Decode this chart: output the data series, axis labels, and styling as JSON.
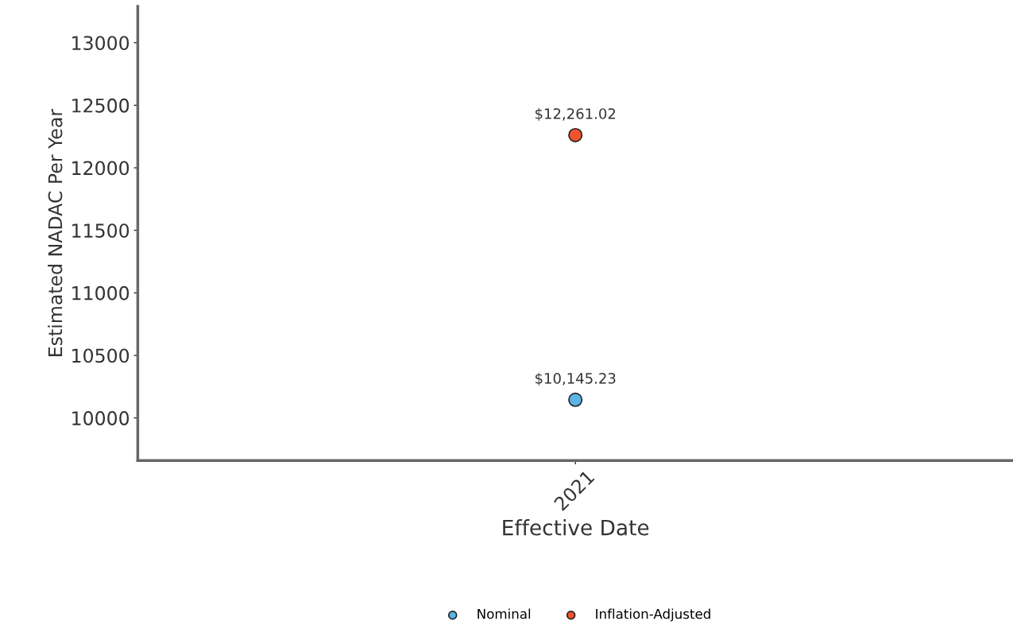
{
  "chart_data": {
    "type": "scatter",
    "xlabel": "Effective Date",
    "ylabel": "Estimated NADAC Per Year",
    "categories": [
      "2021"
    ],
    "series": [
      {
        "name": "Nominal",
        "color": "#5ab4e5",
        "values": [
          10145.23
        ],
        "value_labels": [
          "$10,145.23"
        ]
      },
      {
        "name": "Inflation-Adjusted",
        "color": "#f0532d",
        "values": [
          12261.02
        ],
        "value_labels": [
          "$12,261.02"
        ]
      }
    ],
    "ylim": [
      9660,
      13290
    ],
    "yticks": [
      10000,
      10500,
      11000,
      11500,
      12000,
      12500,
      13000
    ],
    "grid": false,
    "legend": "bottom",
    "marker": "circle"
  }
}
